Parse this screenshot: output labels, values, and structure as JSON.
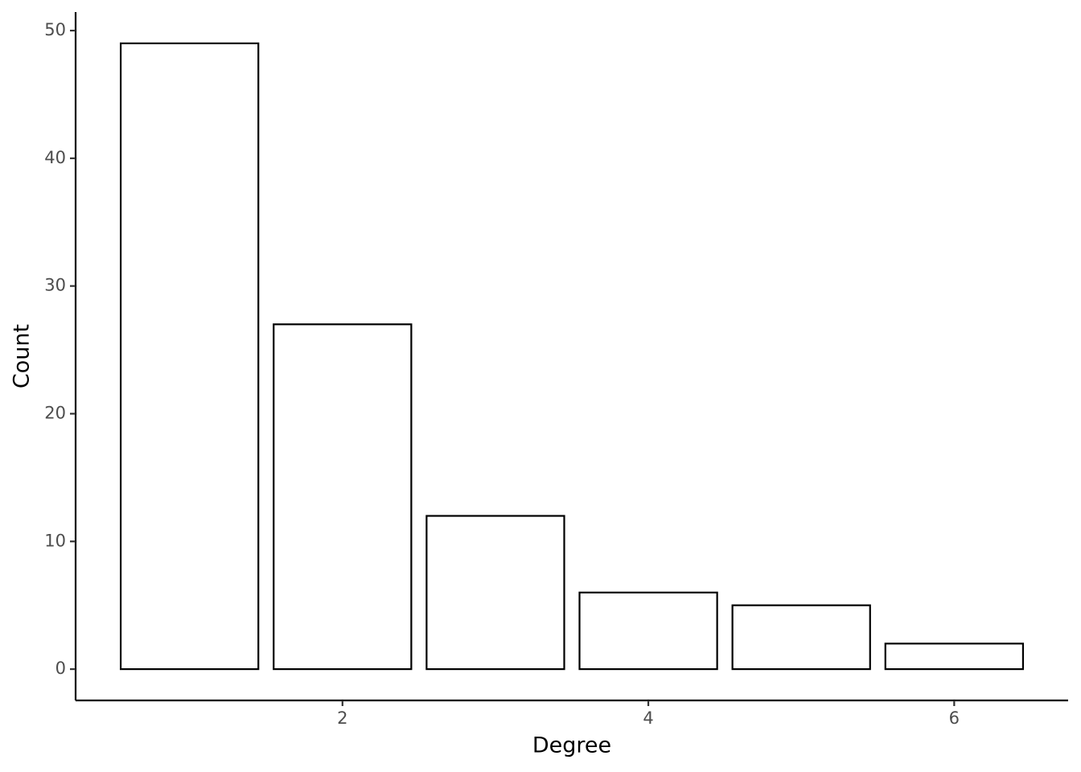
{
  "chart_data": {
    "type": "bar",
    "x_label": "Degree",
    "y_label": "Count",
    "x": [
      1,
      2,
      3,
      4,
      5,
      6
    ],
    "values": [
      49,
      27,
      12,
      6,
      5,
      2
    ],
    "color": "#ffffff",
    "edge_color": "#000000",
    "xlim": [
      0.255,
      6.745
    ],
    "xticks": [
      2,
      4,
      6
    ],
    "ylim": [
      -2.45,
      51.45
    ],
    "yticks": [
      0,
      10,
      20,
      30,
      40,
      50
    ],
    "grid": false
  }
}
